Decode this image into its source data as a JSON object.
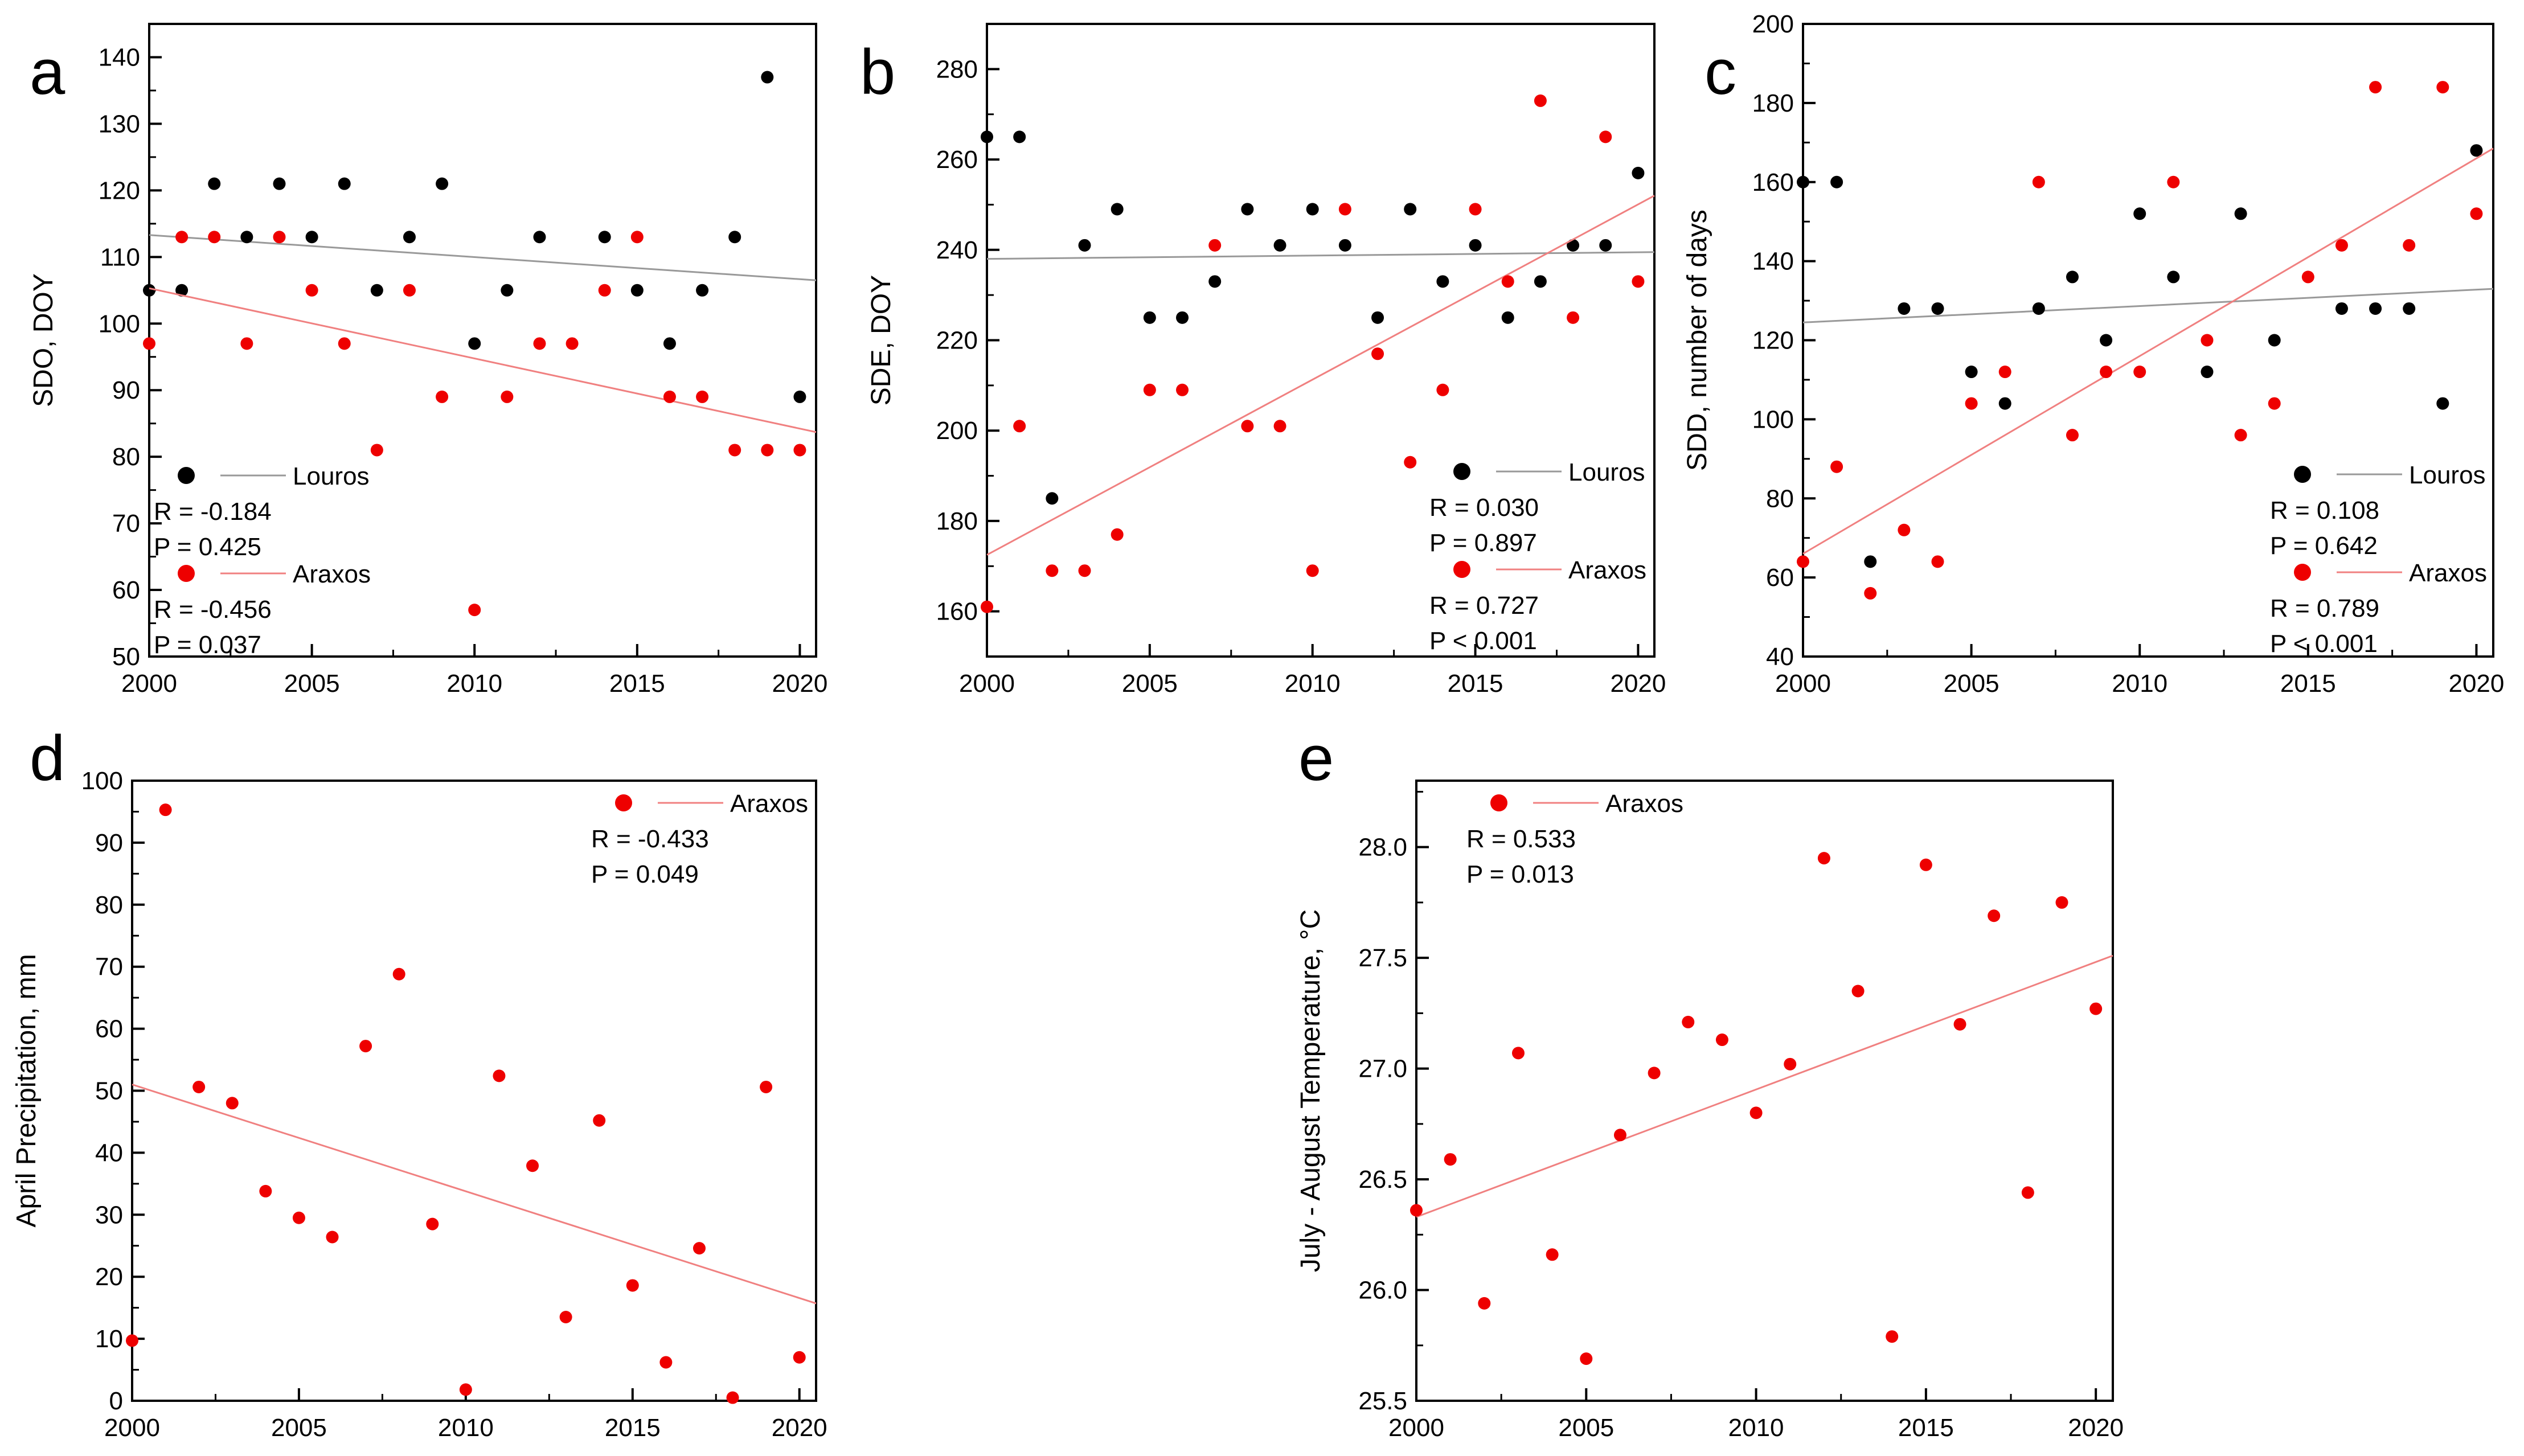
{
  "colors": {
    "louros": "#000000",
    "araxos": "#ee0000",
    "louros_line": "#999999",
    "araxos_line": "#f08080"
  },
  "chart_data": [
    {
      "type": "scatter",
      "panel_label": "a",
      "ylabel": "SDO, DOY",
      "xlim": [
        2000,
        2020.5
      ],
      "ylim": [
        50,
        145
      ],
      "xticks": [
        2000,
        2005,
        2010,
        2015,
        2020
      ],
      "yticks": [
        50,
        60,
        70,
        80,
        90,
        100,
        110,
        120,
        130,
        140
      ],
      "series": [
        {
          "name": "Louros",
          "color": "#000000",
          "x": [
            2000,
            2001,
            2002,
            2003,
            2004,
            2005,
            2006,
            2007,
            2008,
            2009,
            2010,
            2011,
            2012,
            2014,
            2015,
            2016,
            2017,
            2018,
            2019,
            2020
          ],
          "y": [
            105,
            105,
            121,
            113,
            121,
            113,
            121,
            105,
            113,
            121,
            97,
            105,
            113,
            113,
            105,
            97,
            105,
            113,
            137,
            89
          ],
          "trend": [
            [
              2000,
              113.3
            ],
            [
              2020.5,
              106.5
            ]
          ]
        },
        {
          "name": "Araxos",
          "color": "#ee0000",
          "x": [
            2000,
            2001,
            2002,
            2003,
            2004,
            2005,
            2006,
            2007,
            2008,
            2009,
            2010,
            2011,
            2012,
            2013,
            2014,
            2015,
            2016,
            2017,
            2018,
            2019,
            2020
          ],
          "y": [
            97,
            113,
            113,
            97,
            113,
            105,
            97,
            81,
            105,
            89,
            57,
            89,
            97,
            97,
            105,
            113,
            89,
            89,
            81,
            81,
            81
          ],
          "trend": [
            [
              2000,
              105.3
            ],
            [
              2020.5,
              83.7
            ]
          ]
        }
      ],
      "legend": [
        {
          "name": "Louros",
          "r": "R = -0.184",
          "p": "P = 0.425"
        },
        {
          "name": "Araxos",
          "r": "R = -0.456",
          "p": "P = 0.037"
        }
      ]
    },
    {
      "type": "scatter",
      "panel_label": "b",
      "ylabel": "SDE, DOY",
      "xlim": [
        2000,
        2020.5
      ],
      "ylim": [
        150,
        290
      ],
      "xticks": [
        2000,
        2005,
        2010,
        2015,
        2020
      ],
      "yticks": [
        160,
        180,
        200,
        220,
        240,
        260,
        280
      ],
      "series": [
        {
          "name": "Louros",
          "color": "#000000",
          "x": [
            2000,
            2001,
            2002,
            2003,
            2004,
            2005,
            2006,
            2007,
            2008,
            2009,
            2010,
            2011,
            2012,
            2013,
            2014,
            2015,
            2016,
            2017,
            2018,
            2019,
            2020
          ],
          "y": [
            265,
            265,
            185,
            241,
            249,
            225,
            225,
            233,
            249,
            241,
            249,
            241,
            225,
            249,
            233,
            241,
            225,
            233,
            241,
            241,
            257
          ],
          "trend": [
            [
              2000,
              238
            ],
            [
              2020.5,
              239.5
            ]
          ]
        },
        {
          "name": "Araxos",
          "color": "#ee0000",
          "x": [
            2000,
            2001,
            2002,
            2003,
            2004,
            2005,
            2006,
            2007,
            2008,
            2009,
            2010,
            2011,
            2012,
            2013,
            2014,
            2015,
            2016,
            2017,
            2018,
            2019,
            2020
          ],
          "y": [
            161,
            201,
            169,
            169,
            177,
            209,
            209,
            241,
            201,
            201,
            169,
            249,
            217,
            193,
            209,
            249,
            233,
            273,
            225,
            265,
            233
          ],
          "trend": [
            [
              2000,
              172.5
            ],
            [
              2020.5,
              252
            ]
          ]
        }
      ],
      "legend": [
        {
          "name": "Louros",
          "r": "R = 0.030",
          "p": "P = 0.897"
        },
        {
          "name": "Araxos",
          "r": "R = 0.727",
          "p": "P < 0.001"
        }
      ]
    },
    {
      "type": "scatter",
      "panel_label": "c",
      "ylabel": "SDD, number of days",
      "xlim": [
        2000,
        2020.5
      ],
      "ylim": [
        40,
        200
      ],
      "xticks": [
        2000,
        2005,
        2010,
        2015,
        2020
      ],
      "yticks": [
        40,
        60,
        80,
        100,
        120,
        140,
        160,
        180,
        200
      ],
      "series": [
        {
          "name": "Louros",
          "color": "#000000",
          "x": [
            2000,
            2001,
            2002,
            2003,
            2004,
            2005,
            2006,
            2007,
            2008,
            2009,
            2010,
            2011,
            2012,
            2013,
            2014,
            2016,
            2017,
            2018,
            2019,
            2020
          ],
          "y": [
            160,
            160,
            64,
            128,
            128,
            112,
            104,
            128,
            136,
            120,
            152,
            136,
            112,
            152,
            120,
            128,
            128,
            128,
            104,
            168
          ],
          "trend": [
            [
              2000,
              124.5
            ],
            [
              2020.5,
              133
            ]
          ]
        },
        {
          "name": "Araxos",
          "color": "#ee0000",
          "x": [
            2000,
            2001,
            2002,
            2003,
            2004,
            2005,
            2006,
            2007,
            2008,
            2009,
            2010,
            2011,
            2012,
            2013,
            2014,
            2015,
            2016,
            2017,
            2018,
            2019,
            2020
          ],
          "y": [
            64,
            88,
            56,
            72,
            64,
            104,
            112,
            160,
            96,
            112,
            112,
            160,
            120,
            96,
            104,
            136,
            144,
            184,
            144,
            184,
            152
          ],
          "trend": [
            [
              2000,
              66
            ],
            [
              2020.5,
              168.5
            ]
          ]
        }
      ],
      "legend": [
        {
          "name": "Louros",
          "r": "R = 0.108",
          "p": "P = 0.642"
        },
        {
          "name": "Araxos",
          "r": "R = 0.789",
          "p": "P < 0.001"
        }
      ]
    },
    {
      "type": "scatter",
      "panel_label": "d",
      "ylabel": "April Precipitation, mm",
      "xlim": [
        2000,
        2020.5
      ],
      "ylim": [
        0,
        100
      ],
      "xticks": [
        2000,
        2005,
        2010,
        2015,
        2020
      ],
      "yticks": [
        0,
        10,
        20,
        30,
        40,
        50,
        60,
        70,
        80,
        90,
        100
      ],
      "series": [
        {
          "name": "Araxos",
          "color": "#ee0000",
          "x": [
            2000,
            2001,
            2002,
            2003,
            2004,
            2005,
            2006,
            2007,
            2008,
            2009,
            2010,
            2011,
            2012,
            2013,
            2014,
            2015,
            2016,
            2017,
            2018,
            2019,
            2020
          ],
          "y": [
            9.7,
            95.3,
            50.6,
            48,
            33.8,
            29.5,
            26.4,
            57.2,
            68.8,
            28.5,
            1.8,
            52.4,
            37.9,
            13.5,
            45.2,
            18.6,
            6.2,
            24.6,
            0.5,
            50.6,
            7
          ],
          "trend": [
            [
              2000,
              51
            ],
            [
              2020.5,
              15.7
            ]
          ]
        }
      ],
      "legend": [
        {
          "name": "Araxos",
          "r": "R = -0.433",
          "p": "P = 0.049"
        }
      ]
    },
    {
      "type": "scatter",
      "panel_label": "e",
      "ylabel": "July - August Temperature, °C",
      "xlim": [
        2000,
        2020.5
      ],
      "ylim": [
        25.5,
        28.3
      ],
      "xticks": [
        2000,
        2005,
        2010,
        2015,
        2020
      ],
      "yticks": [
        25.5,
        26.0,
        26.5,
        27.0,
        27.5,
        28.0
      ],
      "series": [
        {
          "name": "Araxos",
          "color": "#ee0000",
          "x": [
            2000,
            2001,
            2002,
            2003,
            2004,
            2005,
            2006,
            2007,
            2008,
            2009,
            2010,
            2011,
            2012,
            2013,
            2014,
            2015,
            2016,
            2017,
            2018,
            2019,
            2020
          ],
          "y": [
            26.36,
            26.59,
            25.94,
            27.07,
            26.16,
            25.69,
            26.7,
            26.98,
            27.21,
            27.13,
            26.8,
            27.02,
            27.95,
            27.35,
            25.79,
            27.92,
            27.2,
            27.69,
            26.44,
            27.75,
            27.27
          ],
          "trend": [
            [
              2000,
              26.33
            ],
            [
              2020.5,
              27.51
            ]
          ]
        }
      ],
      "legend": [
        {
          "name": "Araxos",
          "r": "R = 0.533",
          "p": "P = 0.013"
        }
      ]
    }
  ]
}
